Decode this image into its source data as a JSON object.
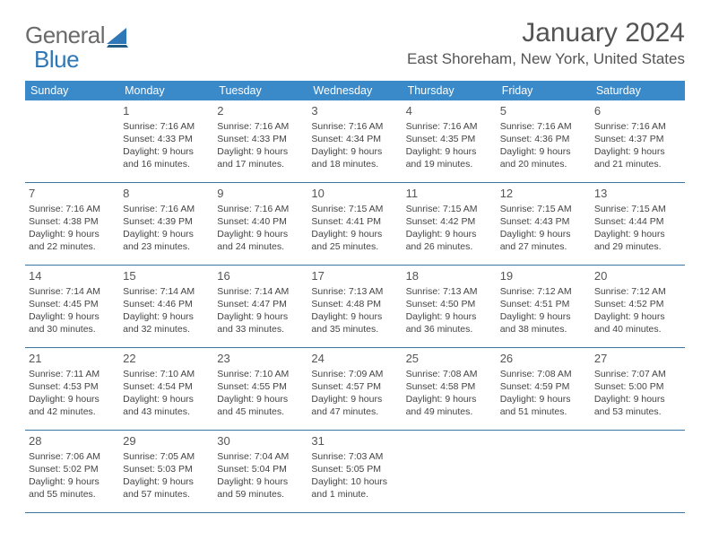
{
  "logo": {
    "general": "General",
    "blue": "Blue"
  },
  "title": "January 2024",
  "location": "East Shoreham, New York, United States",
  "colors": {
    "header_bg": "#3a89c9",
    "header_fg": "#ffffff",
    "rule": "#3a74a0",
    "text": "#444444"
  },
  "day_labels": [
    "Sunday",
    "Monday",
    "Tuesday",
    "Wednesday",
    "Thursday",
    "Friday",
    "Saturday"
  ],
  "weeks": [
    [
      null,
      {
        "n": "1",
        "sr": "7:16 AM",
        "ss": "4:33 PM",
        "dl": "9 hours and 16 minutes."
      },
      {
        "n": "2",
        "sr": "7:16 AM",
        "ss": "4:33 PM",
        "dl": "9 hours and 17 minutes."
      },
      {
        "n": "3",
        "sr": "7:16 AM",
        "ss": "4:34 PM",
        "dl": "9 hours and 18 minutes."
      },
      {
        "n": "4",
        "sr": "7:16 AM",
        "ss": "4:35 PM",
        "dl": "9 hours and 19 minutes."
      },
      {
        "n": "5",
        "sr": "7:16 AM",
        "ss": "4:36 PM",
        "dl": "9 hours and 20 minutes."
      },
      {
        "n": "6",
        "sr": "7:16 AM",
        "ss": "4:37 PM",
        "dl": "9 hours and 21 minutes."
      }
    ],
    [
      {
        "n": "7",
        "sr": "7:16 AM",
        "ss": "4:38 PM",
        "dl": "9 hours and 22 minutes."
      },
      {
        "n": "8",
        "sr": "7:16 AM",
        "ss": "4:39 PM",
        "dl": "9 hours and 23 minutes."
      },
      {
        "n": "9",
        "sr": "7:16 AM",
        "ss": "4:40 PM",
        "dl": "9 hours and 24 minutes."
      },
      {
        "n": "10",
        "sr": "7:15 AM",
        "ss": "4:41 PM",
        "dl": "9 hours and 25 minutes."
      },
      {
        "n": "11",
        "sr": "7:15 AM",
        "ss": "4:42 PM",
        "dl": "9 hours and 26 minutes."
      },
      {
        "n": "12",
        "sr": "7:15 AM",
        "ss": "4:43 PM",
        "dl": "9 hours and 27 minutes."
      },
      {
        "n": "13",
        "sr": "7:15 AM",
        "ss": "4:44 PM",
        "dl": "9 hours and 29 minutes."
      }
    ],
    [
      {
        "n": "14",
        "sr": "7:14 AM",
        "ss": "4:45 PM",
        "dl": "9 hours and 30 minutes."
      },
      {
        "n": "15",
        "sr": "7:14 AM",
        "ss": "4:46 PM",
        "dl": "9 hours and 32 minutes."
      },
      {
        "n": "16",
        "sr": "7:14 AM",
        "ss": "4:47 PM",
        "dl": "9 hours and 33 minutes."
      },
      {
        "n": "17",
        "sr": "7:13 AM",
        "ss": "4:48 PM",
        "dl": "9 hours and 35 minutes."
      },
      {
        "n": "18",
        "sr": "7:13 AM",
        "ss": "4:50 PM",
        "dl": "9 hours and 36 minutes."
      },
      {
        "n": "19",
        "sr": "7:12 AM",
        "ss": "4:51 PM",
        "dl": "9 hours and 38 minutes."
      },
      {
        "n": "20",
        "sr": "7:12 AM",
        "ss": "4:52 PM",
        "dl": "9 hours and 40 minutes."
      }
    ],
    [
      {
        "n": "21",
        "sr": "7:11 AM",
        "ss": "4:53 PM",
        "dl": "9 hours and 42 minutes."
      },
      {
        "n": "22",
        "sr": "7:10 AM",
        "ss": "4:54 PM",
        "dl": "9 hours and 43 minutes."
      },
      {
        "n": "23",
        "sr": "7:10 AM",
        "ss": "4:55 PM",
        "dl": "9 hours and 45 minutes."
      },
      {
        "n": "24",
        "sr": "7:09 AM",
        "ss": "4:57 PM",
        "dl": "9 hours and 47 minutes."
      },
      {
        "n": "25",
        "sr": "7:08 AM",
        "ss": "4:58 PM",
        "dl": "9 hours and 49 minutes."
      },
      {
        "n": "26",
        "sr": "7:08 AM",
        "ss": "4:59 PM",
        "dl": "9 hours and 51 minutes."
      },
      {
        "n": "27",
        "sr": "7:07 AM",
        "ss": "5:00 PM",
        "dl": "9 hours and 53 minutes."
      }
    ],
    [
      {
        "n": "28",
        "sr": "7:06 AM",
        "ss": "5:02 PM",
        "dl": "9 hours and 55 minutes."
      },
      {
        "n": "29",
        "sr": "7:05 AM",
        "ss": "5:03 PM",
        "dl": "9 hours and 57 minutes."
      },
      {
        "n": "30",
        "sr": "7:04 AM",
        "ss": "5:04 PM",
        "dl": "9 hours and 59 minutes."
      },
      {
        "n": "31",
        "sr": "7:03 AM",
        "ss": "5:05 PM",
        "dl": "10 hours and 1 minute."
      },
      null,
      null,
      null
    ]
  ],
  "labels": {
    "sunrise": "Sunrise: ",
    "sunset": "Sunset: ",
    "daylight": "Daylight: "
  }
}
